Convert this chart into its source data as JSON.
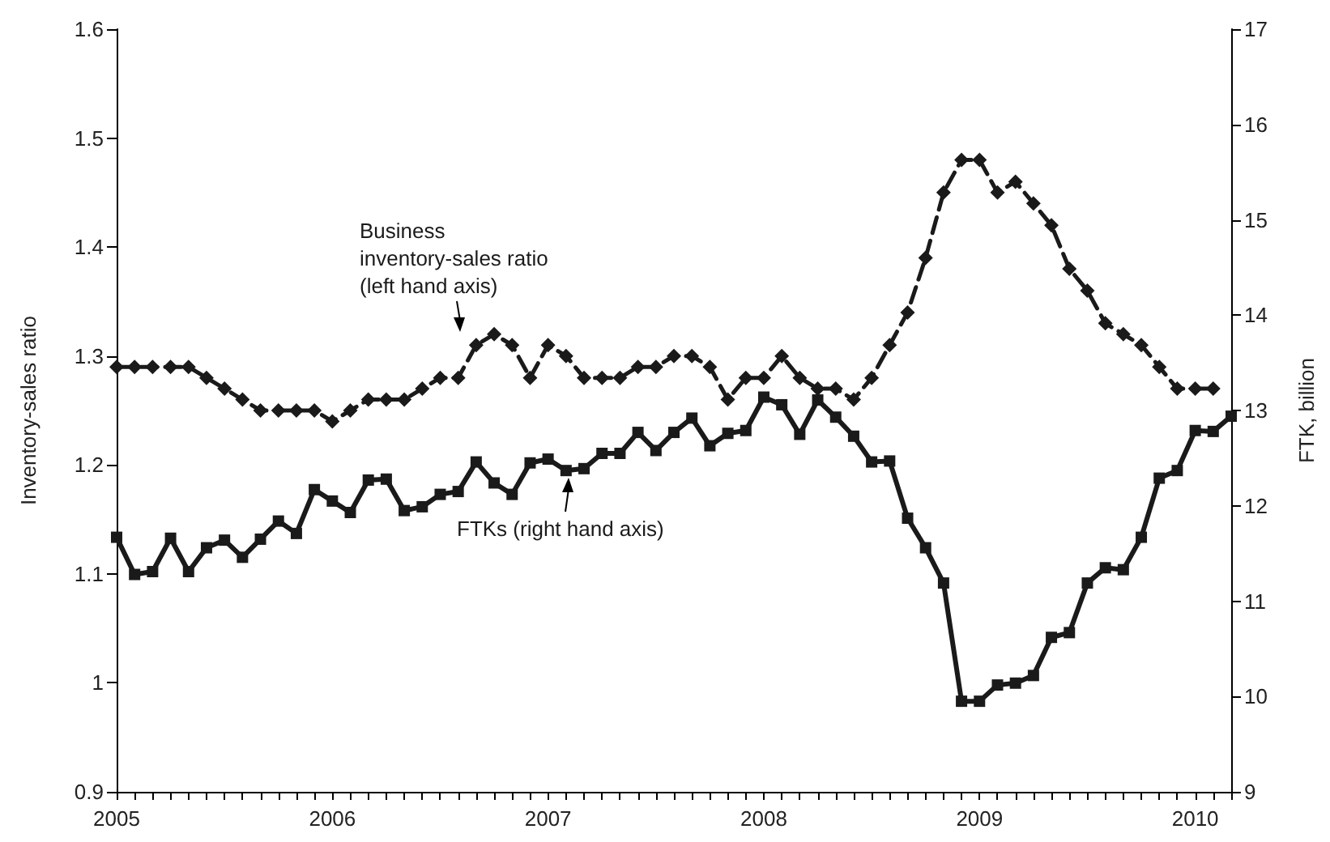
{
  "chart_data": {
    "type": "line",
    "categories": [
      "2005",
      null,
      null,
      null,
      null,
      null,
      null,
      null,
      null,
      null,
      null,
      null,
      "2006",
      null,
      null,
      null,
      null,
      null,
      null,
      null,
      null,
      null,
      null,
      null,
      "2007",
      null,
      null,
      null,
      null,
      null,
      null,
      null,
      null,
      null,
      null,
      null,
      "2008",
      null,
      null,
      null,
      null,
      null,
      null,
      null,
      null,
      null,
      null,
      null,
      "2009",
      null,
      null,
      null,
      null,
      null,
      null,
      null,
      null,
      null,
      null,
      null,
      "2010",
      null,
      null
    ],
    "ylabel": "Inventory-sales ratio",
    "y2label": "FTK, billion",
    "ylim": [
      0.9,
      1.6
    ],
    "yticks": [
      0.9,
      1,
      1.1,
      1.2,
      1.3,
      1.4,
      1.5,
      1.6
    ],
    "y2lim": [
      9,
      17
    ],
    "y2ticks": [
      9,
      10,
      11,
      12,
      13,
      14,
      15,
      16,
      17
    ],
    "grid": false,
    "legend": false,
    "series": [
      {
        "name": "Business inventory-sales ratio (left hand axis)",
        "color": "#1a1a1a",
        "marker": "diamond",
        "line_style": "dashed",
        "values": [
          1.29,
          1.29,
          1.29,
          1.29,
          1.29,
          1.28,
          1.27,
          1.26,
          1.25,
          1.25,
          1.25,
          1.25,
          1.24,
          1.25,
          1.26,
          1.26,
          1.26,
          1.27,
          1.28,
          1.28,
          1.31,
          1.32,
          1.31,
          1.28,
          1.31,
          1.3,
          1.28,
          1.28,
          1.28,
          1.29,
          1.29,
          1.3,
          1.3,
          1.29,
          1.26,
          1.28,
          1.28,
          1.3,
          1.28,
          1.27,
          1.27,
          1.26,
          1.28,
          1.31,
          1.34,
          1.39,
          1.45,
          1.48,
          1.48,
          1.45,
          1.46,
          1.44,
          1.42,
          1.38,
          1.36,
          1.33,
          1.32,
          1.31,
          1.29,
          1.27,
          1.27,
          1.27,
          null
        ]
      },
      {
        "name": "FTKs (right hand axis)",
        "color": "#1a1a1a",
        "marker": "square",
        "line_style": "solid",
        "axis": "y2",
        "values": [
          11.67,
          11.28,
          11.31,
          11.66,
          11.31,
          11.56,
          11.64,
          11.46,
          11.65,
          11.84,
          11.71,
          12.17,
          12.05,
          11.93,
          12.27,
          12.28,
          11.95,
          11.99,
          12.12,
          12.15,
          12.46,
          12.24,
          12.12,
          12.45,
          12.49,
          12.37,
          12.39,
          12.55,
          12.55,
          12.77,
          12.58,
          12.77,
          12.92,
          12.63,
          12.76,
          12.79,
          13.14,
          13.06,
          12.75,
          13.11,
          12.93,
          12.73,
          12.46,
          12.47,
          11.87,
          11.56,
          11.19,
          9.95,
          9.95,
          10.12,
          10.14,
          10.22,
          10.62,
          10.67,
          11.19,
          11.35,
          11.33,
          11.67,
          12.29,
          12.37,
          12.79,
          12.78,
          12.94
        ]
      }
    ]
  }
}
